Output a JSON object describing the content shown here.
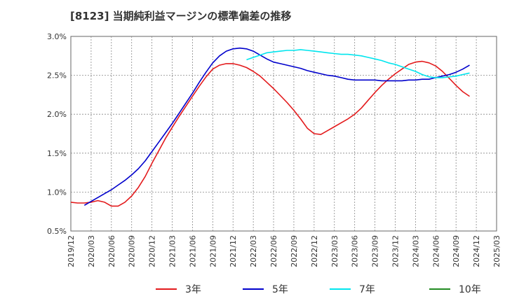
{
  "title": "[8123]  当期純利益マージンの標準偏差の推移",
  "chart_data": {
    "type": "line",
    "title": "[8123]  当期純利益マージンの標準偏差の推移",
    "ylim": [
      0.5,
      3.0
    ],
    "yticks": [
      0.5,
      1.0,
      1.5,
      2.0,
      2.5,
      3.0
    ],
    "ytick_labels": [
      "0.5%",
      "1.0%",
      "1.5%",
      "2.0%",
      "2.5%",
      "3.0%"
    ],
    "y_unit": "%",
    "xticks": [
      "2019/12",
      "2020/03",
      "2020/06",
      "2020/09",
      "2020/12",
      "2021/03",
      "2021/06",
      "2021/09",
      "2021/12",
      "2022/03",
      "2022/06",
      "2022/09",
      "2022/12",
      "2023/03",
      "2023/06",
      "2023/09",
      "2023/12",
      "2024/03",
      "2024/06",
      "2024/09",
      "2024/12",
      "2025/03"
    ],
    "grid": true,
    "legend_position": "bottom",
    "series": [
      {
        "name": "3年",
        "color": "#e31a1c",
        "points": [
          [
            "2019/12",
            0.87
          ],
          [
            "2020/01",
            0.86
          ],
          [
            "2020/02",
            0.86
          ],
          [
            "2020/03",
            0.87
          ],
          [
            "2020/04",
            0.89
          ],
          [
            "2020/05",
            0.87
          ],
          [
            "2020/06",
            0.82
          ],
          [
            "2020/07",
            0.82
          ],
          [
            "2020/08",
            0.87
          ],
          [
            "2020/09",
            0.95
          ],
          [
            "2020/10",
            1.06
          ],
          [
            "2020/11",
            1.2
          ],
          [
            "2020/12",
            1.37
          ],
          [
            "2021/01",
            1.53
          ],
          [
            "2021/02",
            1.69
          ],
          [
            "2021/03",
            1.83
          ],
          [
            "2021/04",
            1.97
          ],
          [
            "2021/05",
            2.1
          ],
          [
            "2021/06",
            2.23
          ],
          [
            "2021/07",
            2.36
          ],
          [
            "2021/08",
            2.48
          ],
          [
            "2021/09",
            2.58
          ],
          [
            "2021/10",
            2.63
          ],
          [
            "2021/11",
            2.65
          ],
          [
            "2021/12",
            2.65
          ],
          [
            "2022/01",
            2.63
          ],
          [
            "2022/02",
            2.6
          ],
          [
            "2022/03",
            2.55
          ],
          [
            "2022/04",
            2.49
          ],
          [
            "2022/05",
            2.41
          ],
          [
            "2022/06",
            2.33
          ],
          [
            "2022/07",
            2.24
          ],
          [
            "2022/08",
            2.15
          ],
          [
            "2022/09",
            2.05
          ],
          [
            "2022/10",
            1.94
          ],
          [
            "2022/11",
            1.82
          ],
          [
            "2022/12",
            1.75
          ],
          [
            "2023/01",
            1.74
          ],
          [
            "2023/02",
            1.79
          ],
          [
            "2023/03",
            1.84
          ],
          [
            "2023/04",
            1.89
          ],
          [
            "2023/05",
            1.94
          ],
          [
            "2023/06",
            2.0
          ],
          [
            "2023/07",
            2.08
          ],
          [
            "2023/08",
            2.18
          ],
          [
            "2023/09",
            2.28
          ],
          [
            "2023/10",
            2.37
          ],
          [
            "2023/11",
            2.45
          ],
          [
            "2023/12",
            2.52
          ],
          [
            "2024/01",
            2.58
          ],
          [
            "2024/02",
            2.64
          ],
          [
            "2024/03",
            2.67
          ],
          [
            "2024/04",
            2.68
          ],
          [
            "2024/05",
            2.66
          ],
          [
            "2024/06",
            2.62
          ],
          [
            "2024/07",
            2.55
          ],
          [
            "2024/08",
            2.46
          ],
          [
            "2024/09",
            2.37
          ],
          [
            "2024/10",
            2.29
          ],
          [
            "2024/11",
            2.23
          ]
        ]
      },
      {
        "name": "5年",
        "color": "#0000cc",
        "points": [
          [
            "2020/02",
            0.83
          ],
          [
            "2020/03",
            0.88
          ],
          [
            "2020/04",
            0.93
          ],
          [
            "2020/05",
            0.98
          ],
          [
            "2020/06",
            1.03
          ],
          [
            "2020/07",
            1.09
          ],
          [
            "2020/08",
            1.15
          ],
          [
            "2020/09",
            1.22
          ],
          [
            "2020/10",
            1.3
          ],
          [
            "2020/11",
            1.4
          ],
          [
            "2020/12",
            1.52
          ],
          [
            "2021/01",
            1.64
          ],
          [
            "2021/02",
            1.76
          ],
          [
            "2021/03",
            1.88
          ],
          [
            "2021/04",
            2.01
          ],
          [
            "2021/05",
            2.14
          ],
          [
            "2021/06",
            2.27
          ],
          [
            "2021/07",
            2.41
          ],
          [
            "2021/08",
            2.54
          ],
          [
            "2021/09",
            2.66
          ],
          [
            "2021/10",
            2.75
          ],
          [
            "2021/11",
            2.81
          ],
          [
            "2021/12",
            2.84
          ],
          [
            "2022/01",
            2.85
          ],
          [
            "2022/02",
            2.84
          ],
          [
            "2022/03",
            2.81
          ],
          [
            "2022/04",
            2.76
          ],
          [
            "2022/05",
            2.71
          ],
          [
            "2022/06",
            2.67
          ],
          [
            "2022/07",
            2.65
          ],
          [
            "2022/08",
            2.63
          ],
          [
            "2022/09",
            2.61
          ],
          [
            "2022/10",
            2.59
          ],
          [
            "2022/11",
            2.56
          ],
          [
            "2022/12",
            2.54
          ],
          [
            "2023/01",
            2.52
          ],
          [
            "2023/02",
            2.5
          ],
          [
            "2023/03",
            2.49
          ],
          [
            "2023/04",
            2.47
          ],
          [
            "2023/05",
            2.45
          ],
          [
            "2023/06",
            2.44
          ],
          [
            "2023/07",
            2.44
          ],
          [
            "2023/08",
            2.44
          ],
          [
            "2023/09",
            2.44
          ],
          [
            "2023/10",
            2.43
          ],
          [
            "2023/11",
            2.43
          ],
          [
            "2023/12",
            2.43
          ],
          [
            "2024/01",
            2.43
          ],
          [
            "2024/02",
            2.44
          ],
          [
            "2024/03",
            2.44
          ],
          [
            "2024/04",
            2.45
          ],
          [
            "2024/05",
            2.45
          ],
          [
            "2024/06",
            2.47
          ],
          [
            "2024/07",
            2.49
          ],
          [
            "2024/08",
            2.51
          ],
          [
            "2024/09",
            2.54
          ],
          [
            "2024/10",
            2.58
          ],
          [
            "2024/11",
            2.63
          ]
        ]
      },
      {
        "name": "7年",
        "color": "#00e5ee",
        "points": [
          [
            "2022/02",
            2.7
          ],
          [
            "2022/03",
            2.73
          ],
          [
            "2022/04",
            2.76
          ],
          [
            "2022/05",
            2.79
          ],
          [
            "2022/06",
            2.8
          ],
          [
            "2022/07",
            2.81
          ],
          [
            "2022/08",
            2.82
          ],
          [
            "2022/09",
            2.82
          ],
          [
            "2022/10",
            2.83
          ],
          [
            "2022/11",
            2.82
          ],
          [
            "2022/12",
            2.81
          ],
          [
            "2023/01",
            2.8
          ],
          [
            "2023/02",
            2.79
          ],
          [
            "2023/03",
            2.78
          ],
          [
            "2023/04",
            2.77
          ],
          [
            "2023/05",
            2.77
          ],
          [
            "2023/06",
            2.76
          ],
          [
            "2023/07",
            2.75
          ],
          [
            "2023/08",
            2.73
          ],
          [
            "2023/09",
            2.71
          ],
          [
            "2023/10",
            2.69
          ],
          [
            "2023/11",
            2.66
          ],
          [
            "2023/12",
            2.64
          ],
          [
            "2024/01",
            2.61
          ],
          [
            "2024/02",
            2.58
          ],
          [
            "2024/03",
            2.55
          ],
          [
            "2024/04",
            2.51
          ],
          [
            "2024/05",
            2.48
          ],
          [
            "2024/06",
            2.47
          ],
          [
            "2024/07",
            2.47
          ],
          [
            "2024/08",
            2.48
          ],
          [
            "2024/09",
            2.49
          ],
          [
            "2024/10",
            2.51
          ],
          [
            "2024/11",
            2.53
          ]
        ]
      },
      {
        "name": "10年",
        "color": "#228b22",
        "points": []
      }
    ]
  }
}
